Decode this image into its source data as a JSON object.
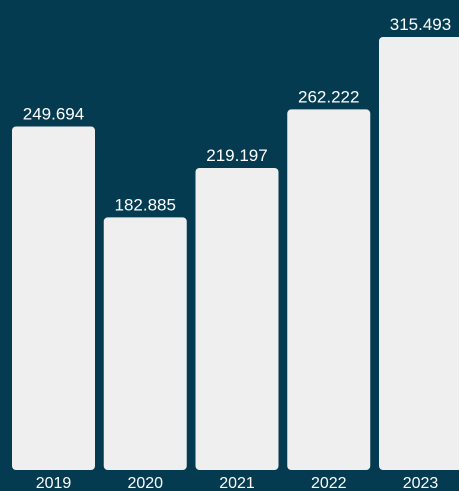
{
  "colors": {
    "background": "#053b50",
    "bar": "#efefef",
    "text": "#ffffff"
  },
  "chart_data": {
    "type": "bar",
    "categories": [
      "2019",
      "2020",
      "2021",
      "2022",
      "2023"
    ],
    "values": [
      249.694,
      182.885,
      219.197,
      262.222,
      315.493
    ],
    "value_labels": [
      "249.694",
      "182.885",
      "219.197",
      "262.222",
      "315.493"
    ],
    "title": "",
    "xlabel": "",
    "ylabel": "",
    "ylim": [
      0,
      335
    ],
    "grid": false,
    "legend": "none"
  }
}
